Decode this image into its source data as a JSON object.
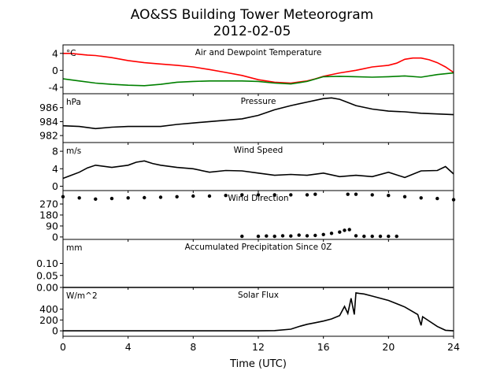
{
  "figure": {
    "title_line1": "AO&SS Building Tower Meteorogram",
    "title_line2": "2012-02-05",
    "xlabel": "Time (UTC)",
    "x_ticks": [
      0,
      4,
      8,
      12,
      16,
      20,
      24
    ],
    "xlim": [
      0,
      24
    ]
  },
  "chart_data": [
    {
      "type": "line",
      "title": "Air and Dewpoint Temperature",
      "unit": "°C",
      "ylim": [
        -5.5,
        6
      ],
      "y_ticks": [
        4,
        0,
        -4
      ],
      "series": [
        {
          "color": "#ff0000",
          "x": [
            0,
            0.5,
            1,
            1.5,
            2,
            3,
            4,
            5,
            6,
            7,
            8,
            9,
            10,
            11,
            12,
            13,
            14,
            15,
            15.5,
            16,
            17,
            18,
            18.5,
            19,
            20,
            20.5,
            21,
            21.5,
            22,
            22.5,
            23,
            23.5,
            24
          ],
          "y": [
            4.0,
            4.0,
            3.8,
            3.6,
            3.5,
            3.0,
            2.3,
            1.8,
            1.5,
            1.2,
            0.8,
            0.2,
            -0.5,
            -1.2,
            -2.2,
            -2.8,
            -3.0,
            -2.5,
            -2.0,
            -1.4,
            -0.6,
            0.0,
            0.4,
            0.8,
            1.2,
            1.7,
            2.6,
            2.9,
            2.9,
            2.5,
            1.8,
            0.8,
            -0.5
          ]
        },
        {
          "color": "#008000",
          "x": [
            0,
            1,
            2,
            3,
            4,
            5,
            6,
            7,
            8,
            9,
            10,
            11,
            12,
            13,
            14,
            15,
            16,
            17,
            18,
            19,
            20,
            21,
            22,
            23,
            24
          ],
          "y": [
            -2.0,
            -2.5,
            -3.0,
            -3.3,
            -3.5,
            -3.6,
            -3.3,
            -2.8,
            -2.6,
            -2.5,
            -2.5,
            -2.5,
            -2.6,
            -3.0,
            -3.2,
            -2.6,
            -1.5,
            -1.4,
            -1.5,
            -1.6,
            -1.5,
            -1.3,
            -1.6,
            -1.0,
            -0.6
          ]
        }
      ]
    },
    {
      "type": "line",
      "title": "Pressure",
      "unit": "hPa",
      "ylim": [
        981,
        988
      ],
      "y_ticks": [
        986,
        984,
        982
      ],
      "series": [
        {
          "color": "#000000",
          "x": [
            0,
            1,
            2,
            3,
            4,
            5,
            6,
            7,
            8,
            9,
            10,
            11,
            12,
            13,
            14,
            15,
            16,
            16.5,
            17,
            18,
            19,
            20,
            21,
            22,
            23,
            24
          ],
          "y": [
            983.4,
            983.3,
            983.0,
            983.2,
            983.3,
            983.3,
            983.3,
            983.6,
            983.8,
            984.0,
            984.2,
            984.4,
            984.9,
            985.7,
            986.3,
            986.8,
            987.3,
            987.4,
            987.2,
            986.3,
            985.8,
            985.5,
            985.4,
            985.2,
            985.1,
            985.0
          ]
        }
      ]
    },
    {
      "type": "line",
      "title": "Wind Speed",
      "unit": "m/s",
      "ylim": [
        -1,
        10
      ],
      "y_ticks": [
        8,
        4,
        0
      ],
      "series": [
        {
          "color": "#000000",
          "x": [
            0,
            0.5,
            1,
            1.5,
            2,
            3,
            4,
            4.5,
            5,
            5.5,
            6,
            7,
            8,
            9,
            10,
            11,
            12,
            13,
            14,
            15,
            16,
            17,
            18,
            19,
            20,
            21,
            22,
            23,
            23.5,
            24
          ],
          "y": [
            1.8,
            2.5,
            3.2,
            4.2,
            4.8,
            4.3,
            4.8,
            5.5,
            5.8,
            5.2,
            4.8,
            4.3,
            4.0,
            3.2,
            3.6,
            3.5,
            3.0,
            2.5,
            2.7,
            2.5,
            3.0,
            2.2,
            2.5,
            2.2,
            3.2,
            2.0,
            3.5,
            3.6,
            4.5,
            2.8
          ]
        }
      ]
    },
    {
      "type": "scatter",
      "title": "Wind Direction",
      "ylim": [
        -20,
        380
      ],
      "y_ticks": [
        270,
        180,
        90,
        0
      ],
      "series": [
        {
          "color": "#000000",
          "x": [
            0,
            1,
            2,
            3,
            4,
            5,
            6,
            7,
            8,
            9,
            10,
            11,
            12,
            13,
            14,
            15,
            15.5,
            17.5,
            18,
            19,
            20,
            21,
            22,
            23,
            24
          ],
          "y": [
            330,
            320,
            310,
            315,
            320,
            322,
            325,
            330,
            335,
            335,
            340,
            345,
            345,
            345,
            345,
            345,
            350,
            350,
            350,
            345,
            340,
            330,
            320,
            315,
            305
          ]
        },
        {
          "color": "#000000",
          "x": [
            11,
            12,
            12.5,
            13,
            13.5,
            14,
            14.5,
            15,
            15.5,
            16,
            16.5,
            17,
            17.3,
            17.6,
            18,
            18.5,
            19,
            19.5,
            20,
            20.5
          ],
          "y": [
            5,
            5,
            8,
            5,
            10,
            8,
            15,
            10,
            12,
            20,
            30,
            40,
            55,
            60,
            10,
            5,
            5,
            5,
            5,
            5
          ]
        }
      ]
    },
    {
      "type": "line",
      "title": "Accumulated Precipitation Since 0Z",
      "unit": "mm",
      "ylim": [
        0,
        0.2
      ],
      "y_ticks": [
        0.1,
        0.05,
        0.0
      ],
      "y_tick_labels": [
        "0.10",
        "0.05",
        "0.00"
      ],
      "series": [
        {
          "color": "#000000",
          "x": [
            0,
            24
          ],
          "y": [
            0,
            0
          ]
        }
      ]
    },
    {
      "type": "line",
      "title": "Solar Flux",
      "unit": "W/m^2",
      "ylim": [
        -100,
        800
      ],
      "y_ticks": [
        400,
        200,
        0
      ],
      "series": [
        {
          "color": "#000000",
          "x": [
            0,
            12,
            13,
            14,
            14.5,
            15,
            15.5,
            16,
            16.5,
            17,
            17.3,
            17.5,
            17.7,
            17.9,
            18.0,
            18.2,
            18.5,
            19,
            20,
            21,
            21.8,
            22.0,
            22.1,
            22.3,
            23,
            23.5,
            24
          ],
          "y": [
            0,
            0,
            5,
            30,
            80,
            120,
            150,
            180,
            220,
            280,
            450,
            320,
            600,
            300,
            700,
            690,
            680,
            640,
            560,
            440,
            300,
            100,
            260,
            220,
            80,
            10,
            0
          ]
        }
      ]
    }
  ]
}
